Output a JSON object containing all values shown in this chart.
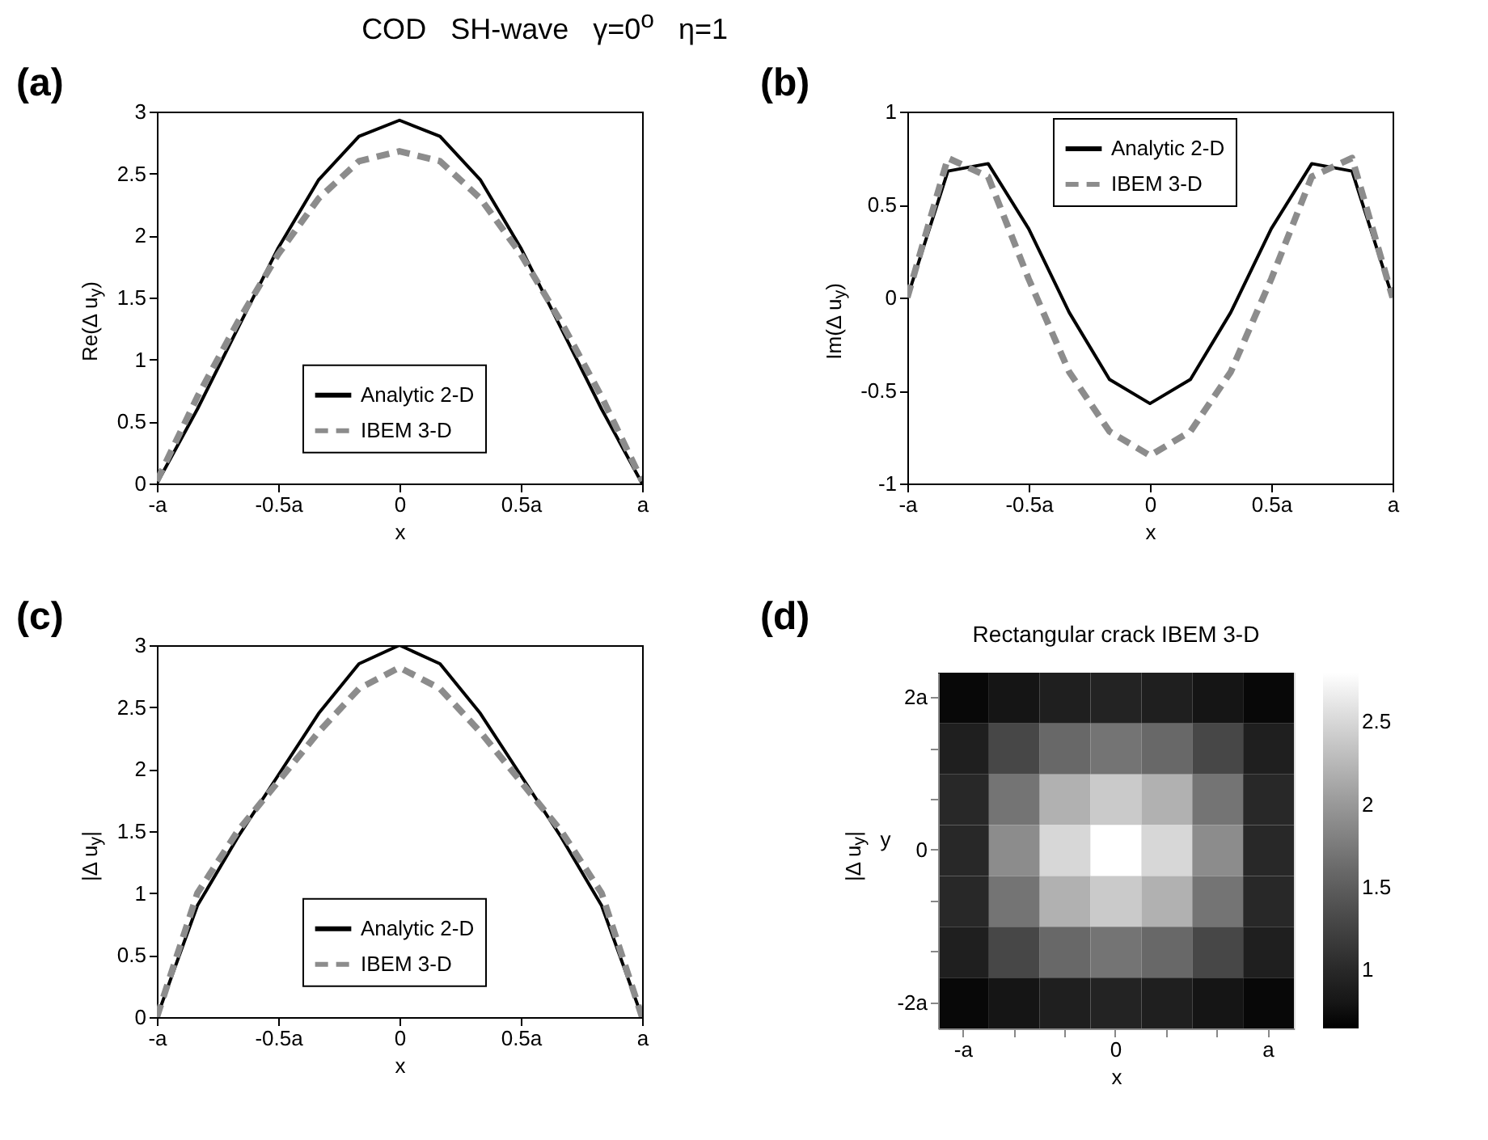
{
  "chart_data": [
    {
      "type": "line",
      "title": "COD   SH-wave   γ=0$^{o}$   η=1",
      "annotations": [
        "(a)"
      ],
      "xlabel": "x",
      "ylabel": "Re(Δ u$_{y}$)",
      "x": [
        -1,
        -0.833,
        -0.667,
        -0.5,
        -0.333,
        -0.167,
        0,
        0.167,
        0.333,
        0.5,
        0.667,
        0.833,
        1
      ],
      "xlim": [
        -1,
        1
      ],
      "xticks": [
        {
          "value": -1,
          "label": "-a"
        },
        {
          "value": -0.5,
          "label": "-0.5a"
        },
        {
          "value": 0,
          "label": "0"
        },
        {
          "value": 0.5,
          "label": "0.5a"
        },
        {
          "value": 1,
          "label": "a"
        }
      ],
      "ylim": [
        0,
        3
      ],
      "yticks": [
        0,
        0.5,
        1,
        1.5,
        2,
        2.5,
        3
      ],
      "legend": "bottom",
      "series": [
        {
          "name": "Analytic 2-D",
          "color": "#000000",
          "line_style": "solid",
          "values": [
            0,
            0.6,
            1.25,
            1.9,
            2.45,
            2.8,
            2.93,
            2.8,
            2.45,
            1.9,
            1.25,
            0.6,
            0
          ]
        },
        {
          "name": "IBEM 3-D",
          "color": "#8c8c8c",
          "line_style": "dashed",
          "values": [
            0.02,
            0.7,
            1.3,
            1.85,
            2.3,
            2.6,
            2.68,
            2.6,
            2.3,
            1.85,
            1.3,
            0.7,
            0.02
          ]
        }
      ]
    },
    {
      "type": "line",
      "annotations": [
        "(b)"
      ],
      "xlabel": "x",
      "ylabel": "Im(Δ u$_{y}$)",
      "x": [
        -1,
        -0.833,
        -0.667,
        -0.5,
        -0.333,
        -0.167,
        0,
        0.167,
        0.333,
        0.5,
        0.667,
        0.833,
        1
      ],
      "xlim": [
        -1,
        1
      ],
      "xticks": [
        {
          "value": -1,
          "label": "-a"
        },
        {
          "value": -0.5,
          "label": "-0.5a"
        },
        {
          "value": 0,
          "label": "0"
        },
        {
          "value": 0.5,
          "label": "0.5a"
        },
        {
          "value": 1,
          "label": "a"
        }
      ],
      "ylim": [
        -1,
        1
      ],
      "yticks": [
        -1,
        -0.5,
        0,
        0.5,
        1
      ],
      "legend": "top",
      "series": [
        {
          "name": "Analytic 2-D",
          "color": "#000000",
          "line_style": "solid",
          "values": [
            0,
            0.68,
            0.72,
            0.37,
            -0.08,
            -0.44,
            -0.57,
            -0.44,
            -0.08,
            0.37,
            0.72,
            0.68,
            0
          ]
        },
        {
          "name": "IBEM 3-D",
          "color": "#8c8c8c",
          "line_style": "dashed",
          "values": [
            0,
            0.75,
            0.65,
            0.1,
            -0.4,
            -0.72,
            -0.85,
            -0.72,
            -0.4,
            0.1,
            0.65,
            0.75,
            0
          ]
        }
      ]
    },
    {
      "type": "line",
      "annotations": [
        "(c)"
      ],
      "xlabel": "x",
      "ylabel": "|Δ u$_{y}$|",
      "x": [
        -1,
        -0.833,
        -0.667,
        -0.5,
        -0.333,
        -0.167,
        0,
        0.167,
        0.333,
        0.5,
        0.667,
        0.833,
        1
      ],
      "xlim": [
        -1,
        1
      ],
      "xticks": [
        {
          "value": -1,
          "label": "-a"
        },
        {
          "value": -0.5,
          "label": "-0.5a"
        },
        {
          "value": 0,
          "label": "0"
        },
        {
          "value": 0.5,
          "label": "0.5a"
        },
        {
          "value": 1,
          "label": "a"
        }
      ],
      "ylim": [
        0,
        3
      ],
      "yticks": [
        0,
        0.5,
        1,
        1.5,
        2,
        2.5,
        3
      ],
      "legend": "bottom",
      "series": [
        {
          "name": "Analytic 2-D",
          "color": "#000000",
          "line_style": "solid",
          "values": [
            0,
            0.9,
            1.45,
            1.95,
            2.45,
            2.85,
            3.0,
            2.85,
            2.45,
            1.95,
            1.45,
            0.9,
            0
          ]
        },
        {
          "name": "IBEM 3-D",
          "color": "#8c8c8c",
          "line_style": "dashed",
          "values": [
            0,
            1.0,
            1.5,
            1.9,
            2.3,
            2.65,
            2.82,
            2.65,
            2.3,
            1.9,
            1.5,
            1.0,
            0
          ]
        }
      ]
    },
    {
      "type": "heatmap",
      "title": "Rectangular crack IBEM 3-D",
      "annotations": [
        "(d)"
      ],
      "xlabel": "x",
      "ylabel": "y",
      "clabel": "|Δ u$_{y}$|",
      "categories": [
        "-a",
        null,
        null,
        "0",
        null,
        null,
        "a"
      ],
      "y_categories": [
        "2a",
        null,
        null,
        "0",
        null,
        null,
        "-2a"
      ],
      "clim": [
        0.65,
        2.8
      ],
      "cticks": [
        1,
        1.5,
        2,
        2.5
      ],
      "cells": [
        [
          0.7,
          0.8,
          0.9,
          0.95,
          0.9,
          0.8,
          0.7
        ],
        [
          0.9,
          1.3,
          1.6,
          1.7,
          1.6,
          1.3,
          0.9
        ],
        [
          1.0,
          1.7,
          2.2,
          2.4,
          2.2,
          1.7,
          1.0
        ],
        [
          1.0,
          1.9,
          2.5,
          2.8,
          2.5,
          1.9,
          1.0
        ],
        [
          1.0,
          1.7,
          2.2,
          2.4,
          2.2,
          1.7,
          1.0
        ],
        [
          0.9,
          1.3,
          1.6,
          1.7,
          1.6,
          1.3,
          0.9
        ],
        [
          0.7,
          0.8,
          0.9,
          0.95,
          0.9,
          0.8,
          0.7
        ]
      ]
    }
  ]
}
